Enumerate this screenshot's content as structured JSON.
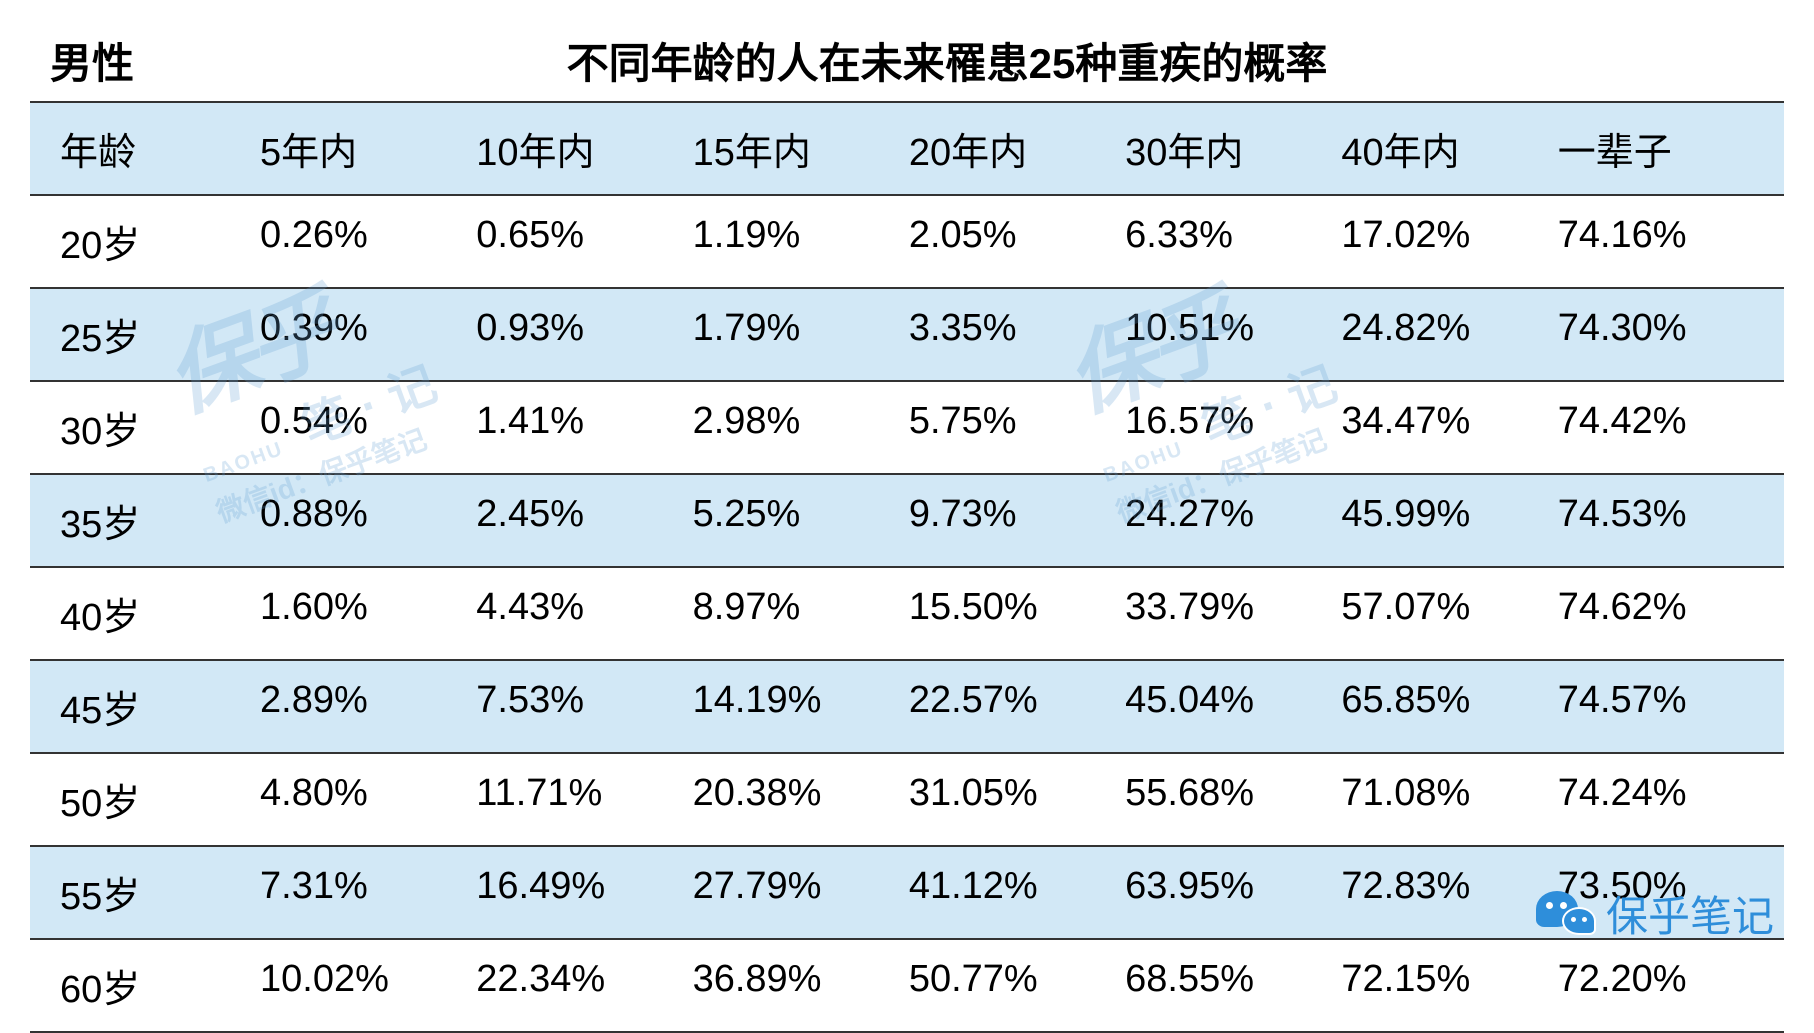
{
  "gender": "男性",
  "title": "不同年龄的人在未来罹患25种重疾的概率",
  "columns": [
    "年龄",
    "5年内",
    "10年内",
    "15年内",
    "20年内",
    "30年内",
    "40年内",
    "一辈子"
  ],
  "rows": [
    {
      "age": "20岁",
      "values": [
        "0.26%",
        "0.65%",
        "1.19%",
        "2.05%",
        "6.33%",
        "17.02%",
        "74.16%"
      ]
    },
    {
      "age": "25岁",
      "values": [
        "0.39%",
        "0.93%",
        "1.79%",
        "3.35%",
        "10.51%",
        "24.82%",
        "74.30%"
      ]
    },
    {
      "age": "30岁",
      "values": [
        "0.54%",
        "1.41%",
        "2.98%",
        "5.75%",
        "16.57%",
        "34.47%",
        "74.42%"
      ]
    },
    {
      "age": "35岁",
      "values": [
        "0.88%",
        "2.45%",
        "5.25%",
        "9.73%",
        "24.27%",
        "45.99%",
        "74.53%"
      ]
    },
    {
      "age": "40岁",
      "values": [
        "1.60%",
        "4.43%",
        "8.97%",
        "15.50%",
        "33.79%",
        "57.07%",
        "74.62%"
      ]
    },
    {
      "age": "45岁",
      "values": [
        "2.89%",
        "7.53%",
        "14.19%",
        "22.57%",
        "45.04%",
        "65.85%",
        "74.57%"
      ]
    },
    {
      "age": "50岁",
      "values": [
        "4.80%",
        "11.71%",
        "20.38%",
        "31.05%",
        "55.68%",
        "71.08%",
        "74.24%"
      ]
    },
    {
      "age": "55岁",
      "values": [
        "7.31%",
        "16.49%",
        "27.79%",
        "41.12%",
        "63.95%",
        "72.83%",
        "73.50%"
      ]
    },
    {
      "age": "60岁",
      "values": [
        "10.02%",
        "22.34%",
        "36.89%",
        "50.77%",
        "68.55%",
        "72.15%",
        "72.20%"
      ]
    }
  ],
  "footer_brand": "保乎笔记",
  "watermark": {
    "big": "保乎",
    "note": "笔 · 记",
    "sub": "BAOHU",
    "id_line": "微信id：保乎笔记"
  },
  "styling": {
    "header_stripe_color": "#d2e8f6",
    "border_color": "#333333",
    "text_color": "#000000",
    "brand_color": "#2e8eda",
    "watermark_color": "rgba(100,160,210,0.25)",
    "font_family": "Microsoft YaHei",
    "title_fontsize": 42,
    "cell_fontsize": 38
  }
}
